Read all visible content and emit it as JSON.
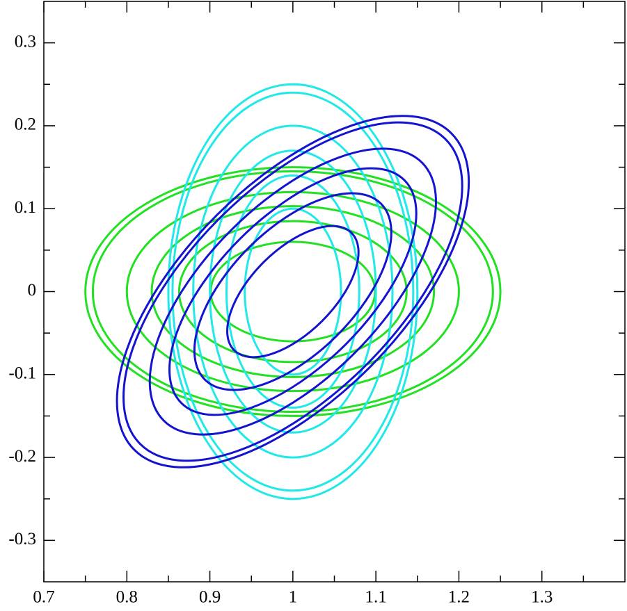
{
  "chart_data": {
    "type": "ellipse",
    "xlim": [
      0.7,
      1.4
    ],
    "ylim": [
      -0.35,
      0.35
    ],
    "xticks": [
      0.7,
      0.8,
      0.9,
      1,
      1.1,
      1.2,
      1.3
    ],
    "yticks": [
      -0.3,
      -0.2,
      -0.1,
      0,
      0.1,
      0.2,
      0.3
    ],
    "xminorticks": [
      0.75,
      0.85,
      0.95,
      1.05,
      1.15,
      1.25,
      1.35
    ],
    "yminorticks": [
      -0.25,
      -0.15,
      -0.05,
      0.05,
      0.15,
      0.25
    ],
    "series": [
      {
        "color": "#22e022",
        "ellipses": [
          {
            "cx": 1,
            "cy": 0,
            "rx": 0.25,
            "ry": 0.15,
            "angle": 0
          },
          {
            "cx": 1,
            "cy": 0,
            "rx": 0.241,
            "ry": 0.145,
            "angle": 0
          },
          {
            "cx": 1,
            "cy": 0,
            "rx": 0.2,
            "ry": 0.12,
            "angle": 0
          },
          {
            "cx": 1,
            "cy": 0,
            "rx": 0.17,
            "ry": 0.103,
            "angle": 0
          },
          {
            "cx": 1,
            "cy": 0,
            "rx": 0.137,
            "ry": 0.085,
            "angle": 0
          },
          {
            "cx": 1,
            "cy": 0,
            "rx": 0.099,
            "ry": 0.06,
            "angle": 0
          }
        ]
      },
      {
        "color": "#22e8e8",
        "ellipses": [
          {
            "cx": 1,
            "cy": 0,
            "rx": 0.15,
            "ry": 0.25,
            "angle": 0
          },
          {
            "cx": 1,
            "cy": 0,
            "rx": 0.145,
            "ry": 0.24,
            "angle": 0
          },
          {
            "cx": 1,
            "cy": 0,
            "rx": 0.12,
            "ry": 0.2,
            "angle": 0
          },
          {
            "cx": 1,
            "cy": 0,
            "rx": 0.1,
            "ry": 0.17,
            "angle": 0
          },
          {
            "cx": 1,
            "cy": 0,
            "rx": 0.08,
            "ry": 0.14,
            "angle": 0
          },
          {
            "cx": 1,
            "cy": 0,
            "rx": 0.058,
            "ry": 0.1,
            "angle": 0
          }
        ]
      },
      {
        "color": "#1414d0",
        "ellipses": [
          {
            "cx": 1,
            "cy": 0,
            "rx": 0.27,
            "ry": 0.13,
            "angle": 45
          },
          {
            "cx": 1,
            "cy": 0,
            "rx": 0.26,
            "ry": 0.125,
            "angle": 45
          },
          {
            "cx": 1,
            "cy": 0,
            "rx": 0.22,
            "ry": 0.105,
            "angle": 45
          },
          {
            "cx": 1,
            "cy": 0,
            "rx": 0.19,
            "ry": 0.09,
            "angle": 45
          },
          {
            "cx": 1,
            "cy": 0,
            "rx": 0.15,
            "ry": 0.075,
            "angle": 45
          },
          {
            "cx": 1,
            "cy": 0,
            "rx": 0.1,
            "ry": 0.05,
            "angle": 45
          }
        ]
      }
    ]
  }
}
